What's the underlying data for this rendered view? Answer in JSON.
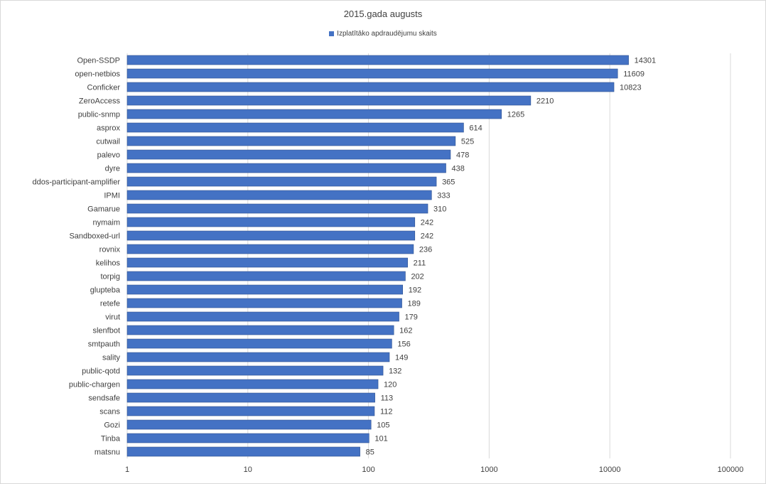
{
  "chart_data": {
    "type": "bar",
    "orientation": "horizontal",
    "title": "2015.gada augusts",
    "xscale": "log",
    "xlim": [
      1,
      100000
    ],
    "x_ticks": [
      "1",
      "10",
      "100",
      "1000",
      "10000",
      "100000"
    ],
    "grid": "vertical major gridlines",
    "legend_position": "top",
    "categories": [
      "Open-SSDP",
      "open-netbios",
      "Conficker",
      "ZeroAccess",
      "public-snmp",
      "asprox",
      "cutwail",
      "palevo",
      "dyre",
      "ddos-participant-amplifier",
      "IPMI",
      "Gamarue",
      "nymaim",
      "Sandboxed-url",
      "rovnix",
      "kelihos",
      "torpig",
      "glupteba",
      "retefe",
      "virut",
      "slenfbot",
      "smtpauth",
      "sality",
      "public-qotd",
      "public-chargen",
      "sendsafe",
      "scans",
      "Gozi",
      "Tinba",
      "matsnu"
    ],
    "series": [
      {
        "name": "Izplatītāko apdraudējumu skaits",
        "color": "#4472C4",
        "values": [
          14301,
          11609,
          10823,
          2210,
          1265,
          614,
          525,
          478,
          438,
          365,
          333,
          310,
          242,
          242,
          236,
          211,
          202,
          192,
          189,
          179,
          162,
          156,
          149,
          132,
          120,
          113,
          112,
          105,
          101,
          85
        ]
      }
    ]
  },
  "colors": {
    "bar": "#4472C4",
    "bar_outline": "#2F528F",
    "grid": "#D9D9D9",
    "text": "#404040"
  }
}
